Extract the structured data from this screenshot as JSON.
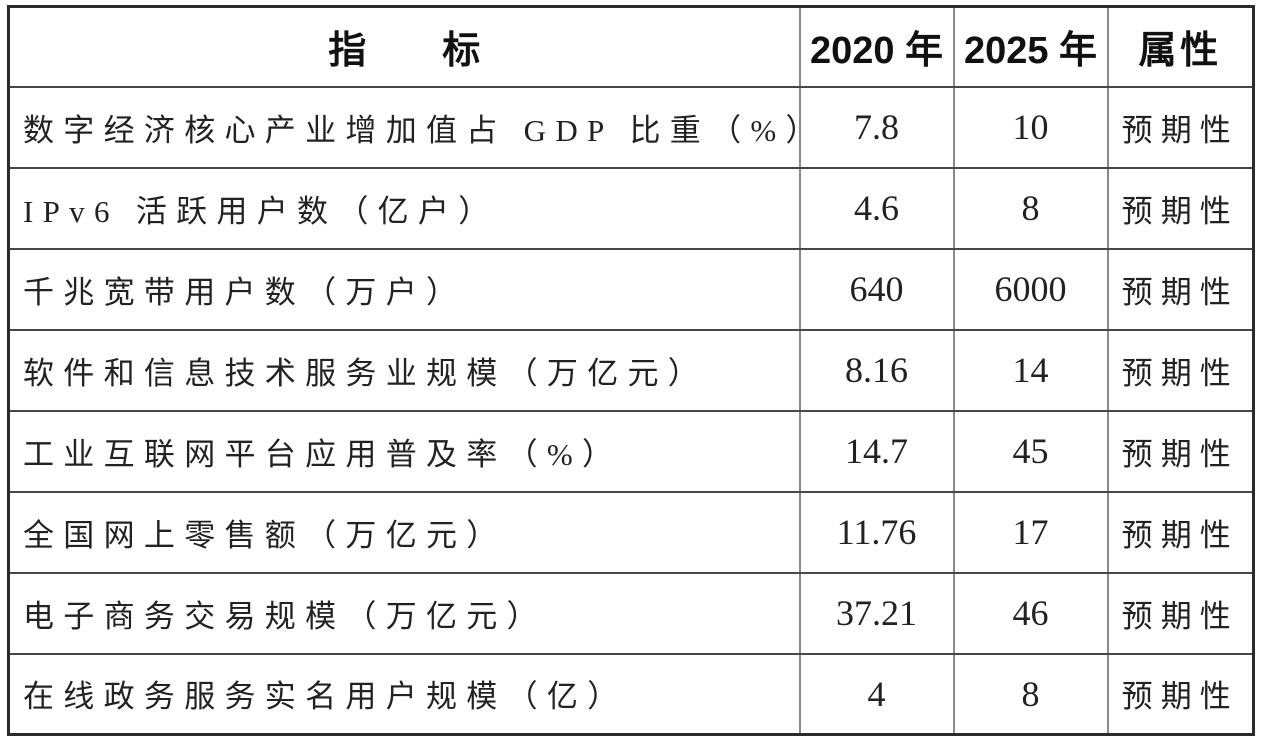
{
  "table": {
    "header": {
      "indicator": "指　　标",
      "year_2020": "2020 年",
      "year_2025": "2025 年",
      "attribute": "属性"
    },
    "rows": [
      {
        "indicator": "数字经济核心产业增加值占 GDP 比重（%）",
        "y2020": "7.8",
        "y2025": "10",
        "attribute": "预期性"
      },
      {
        "indicator": "IPv6 活跃用户数（亿户）",
        "y2020": "4.6",
        "y2025": "8",
        "attribute": "预期性"
      },
      {
        "indicator": "千兆宽带用户数（万户）",
        "y2020": "640",
        "y2025": "6000",
        "attribute": "预期性"
      },
      {
        "indicator": "软件和信息技术服务业规模（万亿元）",
        "y2020": "8.16",
        "y2025": "14",
        "attribute": "预期性"
      },
      {
        "indicator": "工业互联网平台应用普及率（%）",
        "y2020": "14.7",
        "y2025": "45",
        "attribute": "预期性"
      },
      {
        "indicator": "全国网上零售额（万亿元）",
        "y2020": "11.76",
        "y2025": "17",
        "attribute": "预期性"
      },
      {
        "indicator": "电子商务交易规模（万亿元）",
        "y2020": "37.21",
        "y2025": "46",
        "attribute": "预期性"
      },
      {
        "indicator": "在线政务服务实名用户规模（亿）",
        "y2020": "4",
        "y2025": "8",
        "attribute": "预期性"
      }
    ],
    "colors": {
      "outer_border": "#2b2b2b",
      "inner_horizontal_line": "#474747",
      "inner_vertical_line": "#8a8a8a",
      "text": "#222222",
      "background": "#ffffff"
    }
  }
}
